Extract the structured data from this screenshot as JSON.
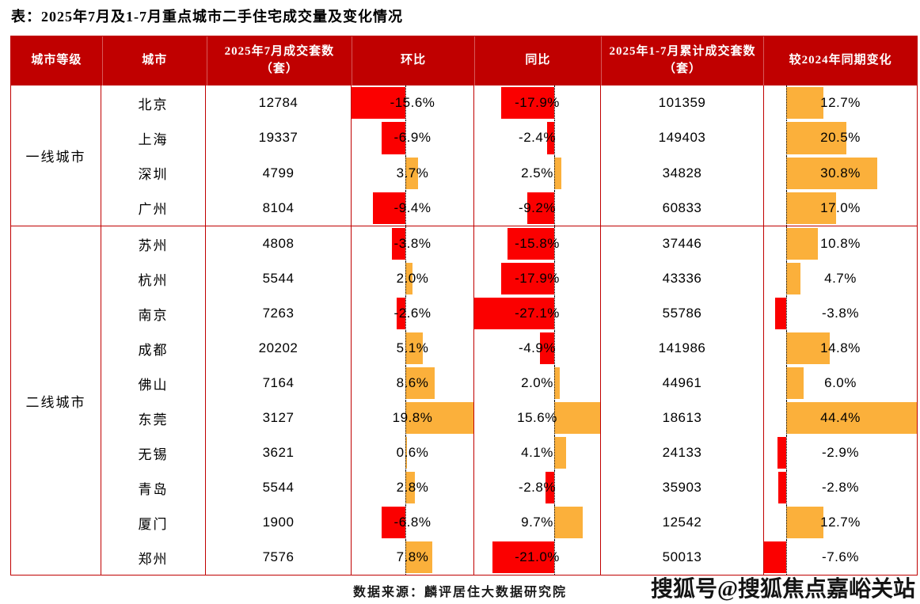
{
  "title": "表：2025年7月及1-7月重点城市二手住宅成交量及变化情况",
  "source": "数据来源：麟评居住大数据研究院",
  "watermark": "搜狐号@搜狐焦点嘉峪关站",
  "colors": {
    "header_bg": "#C00000",
    "grid": "#C00000",
    "bar_negative": "#FB0000",
    "bar_positive": "#FBB03B"
  },
  "chart_data": {
    "type": "table",
    "title": "表：2025年7月及1-7月重点城市二手住宅成交量及变化情况",
    "columns": [
      "城市等级",
      "城市",
      "2025年7月成交套数（套）",
      "环比",
      "同比",
      "2025年1-7月累计成交套数（套）",
      "较2024年同期变化"
    ],
    "bar_axes": {
      "mom_pct": {
        "min": -15.6,
        "max": 19.8
      },
      "yoy_pct": {
        "min": -27.1,
        "max": 15.6
      },
      "cum_change_pct": {
        "min": -7.6,
        "max": 44.4
      }
    },
    "groups": [
      {
        "tier": "一线城市",
        "rows": [
          {
            "city": "北京",
            "jul_sales": "12784",
            "mom_pct": -15.6,
            "yoy_pct": -17.9,
            "cum_sales": "101359",
            "cum_change_pct": 12.7
          },
          {
            "city": "上海",
            "jul_sales": "19337",
            "mom_pct": -6.9,
            "yoy_pct": -2.4,
            "cum_sales": "149403",
            "cum_change_pct": 20.5
          },
          {
            "city": "深圳",
            "jul_sales": "4799",
            "mom_pct": 3.7,
            "yoy_pct": 2.5,
            "cum_sales": "34828",
            "cum_change_pct": 30.8
          },
          {
            "city": "广州",
            "jul_sales": "8104",
            "mom_pct": -9.4,
            "yoy_pct": -9.2,
            "cum_sales": "60833",
            "cum_change_pct": 17.0
          }
        ]
      },
      {
        "tier": "二线城市",
        "rows": [
          {
            "city": "苏州",
            "jul_sales": "4808",
            "mom_pct": -3.8,
            "yoy_pct": -15.8,
            "cum_sales": "37446",
            "cum_change_pct": 10.8
          },
          {
            "city": "杭州",
            "jul_sales": "5544",
            "mom_pct": 2.0,
            "yoy_pct": -17.9,
            "cum_sales": "43336",
            "cum_change_pct": 4.7
          },
          {
            "city": "南京",
            "jul_sales": "7263",
            "mom_pct": -2.6,
            "yoy_pct": -27.1,
            "cum_sales": "55786",
            "cum_change_pct": -3.8
          },
          {
            "city": "成都",
            "jul_sales": "20202",
            "mom_pct": 5.1,
            "yoy_pct": -4.9,
            "cum_sales": "141986",
            "cum_change_pct": 14.8
          },
          {
            "city": "佛山",
            "jul_sales": "7164",
            "mom_pct": 8.6,
            "yoy_pct": 2.0,
            "cum_sales": "44961",
            "cum_change_pct": 6.0
          },
          {
            "city": "东莞",
            "jul_sales": "3127",
            "mom_pct": 19.8,
            "yoy_pct": 15.6,
            "cum_sales": "18613",
            "cum_change_pct": 44.4
          },
          {
            "city": "无锡",
            "jul_sales": "3621",
            "mom_pct": 0.6,
            "yoy_pct": 4.1,
            "cum_sales": "24133",
            "cum_change_pct": -2.9
          },
          {
            "city": "青岛",
            "jul_sales": "5544",
            "mom_pct": 2.8,
            "yoy_pct": -2.8,
            "cum_sales": "35903",
            "cum_change_pct": -2.8
          },
          {
            "city": "厦门",
            "jul_sales": "1900",
            "mom_pct": -6.8,
            "yoy_pct": 9.7,
            "cum_sales": "12542",
            "cum_change_pct": 12.7
          },
          {
            "city": "郑州",
            "jul_sales": "7576",
            "mom_pct": 7.8,
            "yoy_pct": -21.0,
            "cum_sales": "50013",
            "cum_change_pct": -7.6
          }
        ]
      }
    ],
    "source": "数据来源：麟评居住大数据研究院"
  }
}
